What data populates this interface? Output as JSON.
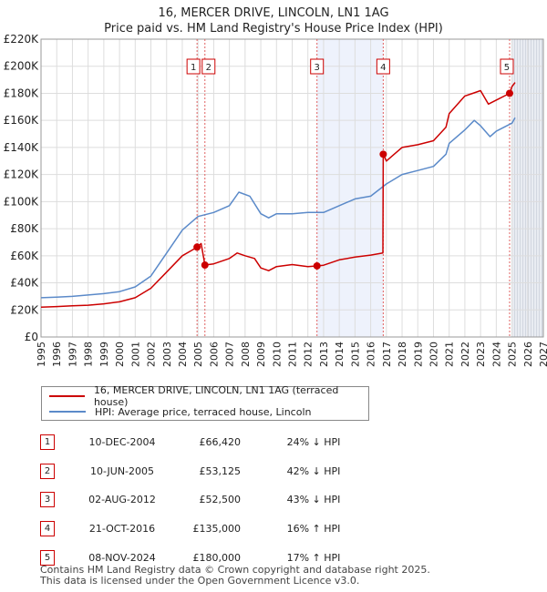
{
  "title_line1": "16, MERCER DRIVE, LINCOLN, LN1 1AG",
  "title_line2": "Price paid vs. HM Land Registry's House Price Index (HPI)",
  "chart_data": {
    "type": "line",
    "title": "16, MERCER DRIVE, LINCOLN, LN1 1AG — Price paid vs. HM Land Registry's House Price Index (HPI)",
    "xlim": [
      1995,
      2027
    ],
    "ylim": [
      0,
      220000
    ],
    "x_ticks": [
      "1995",
      "1996",
      "1997",
      "1998",
      "1999",
      "2000",
      "2001",
      "2002",
      "2003",
      "2004",
      "2005",
      "2006",
      "2007",
      "2008",
      "2009",
      "2010",
      "2011",
      "2012",
      "2013",
      "2014",
      "2015",
      "2016",
      "2017",
      "2018",
      "2019",
      "2020",
      "2021",
      "2022",
      "2023",
      "2024",
      "2025",
      "2026",
      "2027"
    ],
    "y_ticks": [
      {
        "value": 0,
        "label": "£0"
      },
      {
        "value": 20000,
        "label": "£20K"
      },
      {
        "value": 40000,
        "label": "£40K"
      },
      {
        "value": 60000,
        "label": "£60K"
      },
      {
        "value": 80000,
        "label": "£80K"
      },
      {
        "value": 100000,
        "label": "£100K"
      },
      {
        "value": 120000,
        "label": "£120K"
      },
      {
        "value": 140000,
        "label": "£140K"
      },
      {
        "value": 160000,
        "label": "£160K"
      },
      {
        "value": 180000,
        "label": "£180K"
      },
      {
        "value": 200000,
        "label": "£200K"
      },
      {
        "value": 220000,
        "label": "£220K"
      }
    ],
    "grid": true,
    "shaded_ranges": [
      {
        "from": 2012.58,
        "to": 2016.8,
        "kind": "between-sales"
      },
      {
        "from": 2025.0,
        "to": 2027,
        "kind": "future"
      }
    ],
    "series": [
      {
        "name": "16, MERCER DRIVE, LINCOLN, LN1 1AG (terraced house)",
        "color": "#cc0000",
        "points": [
          [
            1995,
            22000
          ],
          [
            1996,
            22500
          ],
          [
            1997,
            23000
          ],
          [
            1998,
            23500
          ],
          [
            1999,
            24500
          ],
          [
            2000,
            26000
          ],
          [
            2001,
            29000
          ],
          [
            2002,
            36000
          ],
          [
            2003,
            48000
          ],
          [
            2004,
            60000
          ],
          [
            2004.6,
            64000
          ],
          [
            2004.94,
            66420
          ],
          [
            2005.2,
            69000
          ],
          [
            2005.44,
            53125
          ],
          [
            2006,
            54000
          ],
          [
            2007,
            58000
          ],
          [
            2007.5,
            62000
          ],
          [
            2008,
            60000
          ],
          [
            2008.6,
            58000
          ],
          [
            2009,
            51000
          ],
          [
            2009.5,
            49000
          ],
          [
            2010,
            52000
          ],
          [
            2011,
            53500
          ],
          [
            2012,
            52000
          ],
          [
            2012.58,
            52500
          ],
          [
            2013,
            53000
          ],
          [
            2014,
            57000
          ],
          [
            2015,
            59000
          ],
          [
            2016,
            60500
          ],
          [
            2016.78,
            62000
          ],
          [
            2016.8,
            135000
          ],
          [
            2017,
            130000
          ],
          [
            2017.5,
            135000
          ],
          [
            2018,
            140000
          ],
          [
            2019,
            142000
          ],
          [
            2020,
            145000
          ],
          [
            2020.8,
            155000
          ],
          [
            2021,
            165000
          ],
          [
            2022,
            178000
          ],
          [
            2022.5,
            180000
          ],
          [
            2023,
            182000
          ],
          [
            2023.5,
            172000
          ],
          [
            2024,
            175000
          ],
          [
            2024.85,
            180000
          ],
          [
            2025,
            185000
          ],
          [
            2025.2,
            188000
          ]
        ]
      },
      {
        "name": "HPI: Average price, terraced house, Lincoln",
        "color": "#5b8ac9",
        "points": [
          [
            1995,
            29000
          ],
          [
            1996,
            29500
          ],
          [
            1997,
            30000
          ],
          [
            1998,
            31000
          ],
          [
            1999,
            32000
          ],
          [
            2000,
            33500
          ],
          [
            2001,
            37000
          ],
          [
            2002,
            45000
          ],
          [
            2003,
            62000
          ],
          [
            2004,
            79000
          ],
          [
            2005,
            89000
          ],
          [
            2006,
            92000
          ],
          [
            2007,
            97000
          ],
          [
            2007.6,
            107000
          ],
          [
            2008.3,
            104000
          ],
          [
            2009,
            91000
          ],
          [
            2009.5,
            88000
          ],
          [
            2010,
            91000
          ],
          [
            2011,
            91000
          ],
          [
            2012,
            92000
          ],
          [
            2013,
            92000
          ],
          [
            2014,
            97000
          ],
          [
            2015,
            102000
          ],
          [
            2016,
            104000
          ],
          [
            2017,
            113000
          ],
          [
            2018,
            120000
          ],
          [
            2019,
            123000
          ],
          [
            2020,
            126000
          ],
          [
            2020.8,
            135000
          ],
          [
            2021,
            143000
          ],
          [
            2022,
            153000
          ],
          [
            2022.6,
            160000
          ],
          [
            2023,
            156000
          ],
          [
            2023.6,
            148000
          ],
          [
            2024,
            152000
          ],
          [
            2025,
            158000
          ],
          [
            2025.2,
            162000
          ]
        ]
      }
    ],
    "annotations": [
      {
        "label": "1",
        "x": 2004.94,
        "value": 66420
      },
      {
        "label": "2",
        "x": 2005.44,
        "value": 53125
      },
      {
        "label": "3",
        "x": 2012.58,
        "value": 52500
      },
      {
        "label": "4",
        "x": 2016.8,
        "value": 135000
      },
      {
        "label": "5",
        "x": 2024.85,
        "value": 180000
      }
    ]
  },
  "legend": {
    "property_label": "16, MERCER DRIVE, LINCOLN, LN1 1AG (terraced house)",
    "hpi_label": "HPI: Average price, terraced house, Lincoln"
  },
  "sales": [
    {
      "num": "1",
      "date": "10-DEC-2004",
      "price": "£66,420",
      "hpi": "24% ↓ HPI"
    },
    {
      "num": "2",
      "date": "10-JUN-2005",
      "price": "£53,125",
      "hpi": "42% ↓ HPI"
    },
    {
      "num": "3",
      "date": "02-AUG-2012",
      "price": "£52,500",
      "hpi": "43% ↓ HPI"
    },
    {
      "num": "4",
      "date": "21-OCT-2016",
      "price": "£135,000",
      "hpi": "16% ↑ HPI"
    },
    {
      "num": "5",
      "date": "08-NOV-2024",
      "price": "£180,000",
      "hpi": "17% ↑ HPI"
    }
  ],
  "footer_line1": "Contains HM Land Registry data © Crown copyright and database right 2025.",
  "footer_line2": "This data is licensed under the Open Government Licence v3.0."
}
